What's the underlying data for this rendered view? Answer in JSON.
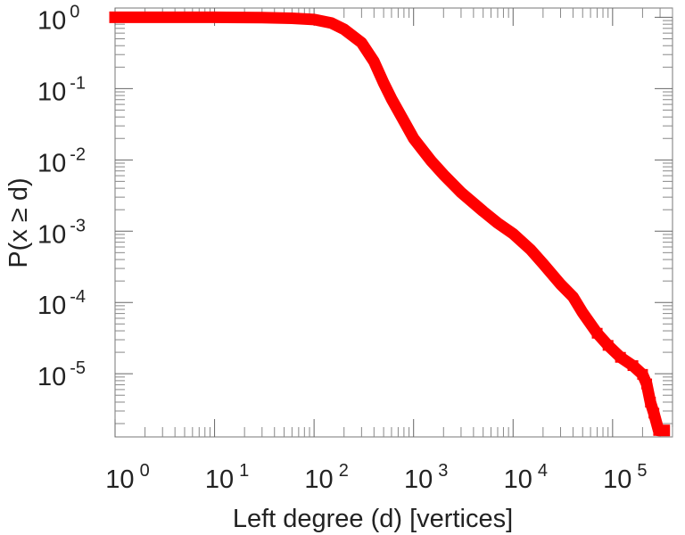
{
  "chart_data": {
    "type": "line",
    "xlabel": "Left degree (d) [vertices]",
    "ylabel": "P(x ≥ d)",
    "xscale": "log",
    "yscale": "log",
    "xlim": [
      1,
      400000
    ],
    "ylim": [
      1.3e-06,
      1.35
    ],
    "grid": false,
    "legend": "none",
    "x_ticks": [
      {
        "value": 1,
        "base": "10",
        "exp": "0"
      },
      {
        "value": 10,
        "base": "10",
        "exp": "1"
      },
      {
        "value": 100,
        "base": "10",
        "exp": "2"
      },
      {
        "value": 1000,
        "base": "10",
        "exp": "3"
      },
      {
        "value": 10000,
        "base": "10",
        "exp": "4"
      },
      {
        "value": 100000,
        "base": "10",
        "exp": "5"
      }
    ],
    "y_ticks": [
      {
        "value": 1,
        "base": "10",
        "exp": "0"
      },
      {
        "value": 0.1,
        "base": "10",
        "exp": "-1"
      },
      {
        "value": 0.01,
        "base": "10",
        "exp": "-2"
      },
      {
        "value": 0.001,
        "base": "10",
        "exp": "-3"
      },
      {
        "value": 0.0001,
        "base": "10",
        "exp": "-4"
      },
      {
        "value": 1e-05,
        "base": "10",
        "exp": "-5"
      }
    ],
    "series": [
      {
        "color": "#ff0000",
        "points": [
          [
            1,
            1.0
          ],
          [
            10,
            1.0
          ],
          [
            30,
            0.99
          ],
          [
            60,
            0.97
          ],
          [
            100,
            0.93
          ],
          [
            150,
            0.83
          ],
          [
            200,
            0.68
          ],
          [
            300,
            0.44
          ],
          [
            400,
            0.24
          ],
          [
            500,
            0.12
          ],
          [
            600,
            0.072
          ],
          [
            800,
            0.035
          ],
          [
            1000,
            0.02
          ],
          [
            1500,
            0.0097
          ],
          [
            2000,
            0.0062
          ],
          [
            3000,
            0.0035
          ],
          [
            5000,
            0.0019
          ],
          [
            7000,
            0.0013
          ],
          [
            10000,
            0.00092
          ],
          [
            15000,
            0.00055
          ],
          [
            20000,
            0.00035
          ],
          [
            30000,
            0.00018
          ],
          [
            40000,
            0.00012
          ],
          [
            50000,
            7.2e-05
          ],
          [
            70000,
            3.7e-05
          ],
          [
            90000,
            2.5e-05
          ],
          [
            120000,
            1.7e-05
          ],
          [
            160000,
            1.3e-05
          ],
          [
            200000,
            9.8e-06
          ],
          [
            220000,
            7.2e-06
          ],
          [
            240000,
            4e-06
          ],
          [
            260000,
            2.8e-06
          ],
          [
            290000,
            1.6e-06
          ],
          [
            330000,
            1.6e-06
          ]
        ]
      }
    ]
  }
}
